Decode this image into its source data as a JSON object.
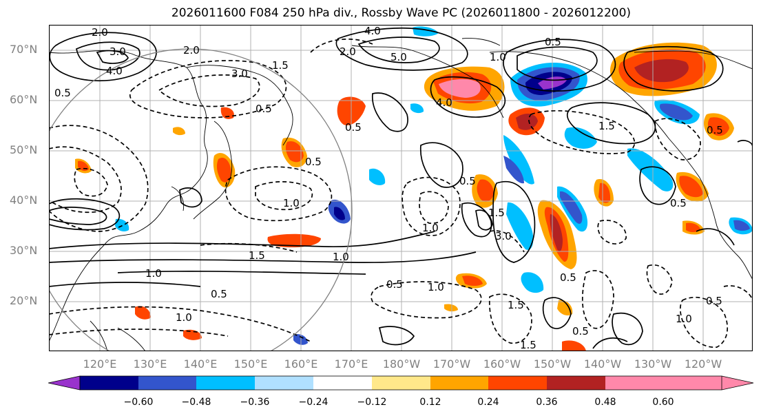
{
  "title": "2026011600 F084 250 hPa div., Rossby Wave PC (2026011800 - 2026012200)",
  "lat_labels": [
    "70°N",
    "60°N",
    "50°N",
    "40°N",
    "30°N",
    "20°N"
  ],
  "lon_labels": [
    "120°E",
    "130°E",
    "140°E",
    "150°E",
    "160°E",
    "170°E",
    "180°W",
    "170°W",
    "160°W",
    "150°W",
    "140°W",
    "130°W",
    "120°W"
  ],
  "colorbar": {
    "ticks": [
      "−0.60",
      "−0.48",
      "−0.36",
      "−0.24",
      "−0.12",
      "0.12",
      "0.24",
      "0.36",
      "0.48",
      "0.60"
    ],
    "colors": [
      "#9933cc",
      "#00008b",
      "#3355cc",
      "#00bfff",
      "#b0e0ff",
      "#ffffff",
      "#ffe88a",
      "#ffa500",
      "#ff4500",
      "#b22222",
      "#ff88aa"
    ]
  },
  "contour_labels": [
    "2.0",
    "3.0",
    "4.0",
    "2.0",
    "3.0",
    "0.5",
    "1.5",
    "0.5",
    "0.5",
    "1.0",
    "0.5",
    "4.0",
    "5.0",
    "2.0",
    "4.0",
    "0.5",
    "1.0",
    "0.5",
    "1.0",
    "0.5",
    "1.0",
    "1.5",
    "0.5",
    "3.0",
    "1.0",
    "1.5",
    "0.5",
    "1.0",
    "1.5",
    "0.5",
    "1.0",
    "0.5",
    "1.5",
    "0.5",
    "0.5",
    "1.0",
    "1.5"
  ]
}
